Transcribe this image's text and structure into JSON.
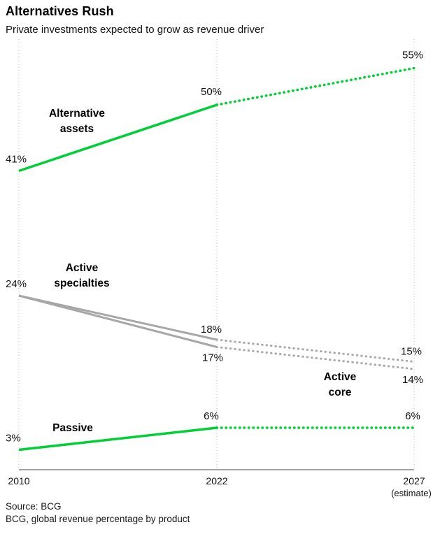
{
  "colors": {
    "green": "#00cf35",
    "gray": "#a7a7a7",
    "axis": "#444444",
    "gridline": "#bdbdbd"
  },
  "footer": {
    "source": "Source: BCG",
    "note": "BCG, global revenue percentage by product"
  },
  "chart_data": {
    "type": "line",
    "title": "Alternatives Rush",
    "subtitle": "Private investments expected to grow as revenue driver",
    "x": [
      2010,
      2022,
      2027
    ],
    "x_labels": [
      "2010",
      "2022",
      "2027"
    ],
    "x_sub_labels": [
      "",
      "",
      "(estimate)"
    ],
    "dotted_from_index": 1,
    "unit": "%",
    "ylim": [
      0,
      58
    ],
    "grid": "vertical-dotted",
    "legend": "inline-labels",
    "series": [
      {
        "name": "Alternative assets",
        "color": "green",
        "values": [
          41,
          50,
          55
        ],
        "point_labels": [
          "41%",
          "50%",
          "55%"
        ]
      },
      {
        "name": "Active specialties",
        "color": "gray",
        "values": [
          24,
          18,
          15
        ],
        "point_labels": [
          "24%",
          "18%",
          "15%"
        ]
      },
      {
        "name": "Active core",
        "color": "gray",
        "values": [
          24,
          17,
          14
        ],
        "point_labels": [
          null,
          "17%",
          "14%"
        ]
      },
      {
        "name": "Passive",
        "color": "green",
        "values": [
          3,
          6,
          6
        ],
        "point_labels": [
          "3%",
          "6%",
          "6%"
        ]
      }
    ]
  }
}
